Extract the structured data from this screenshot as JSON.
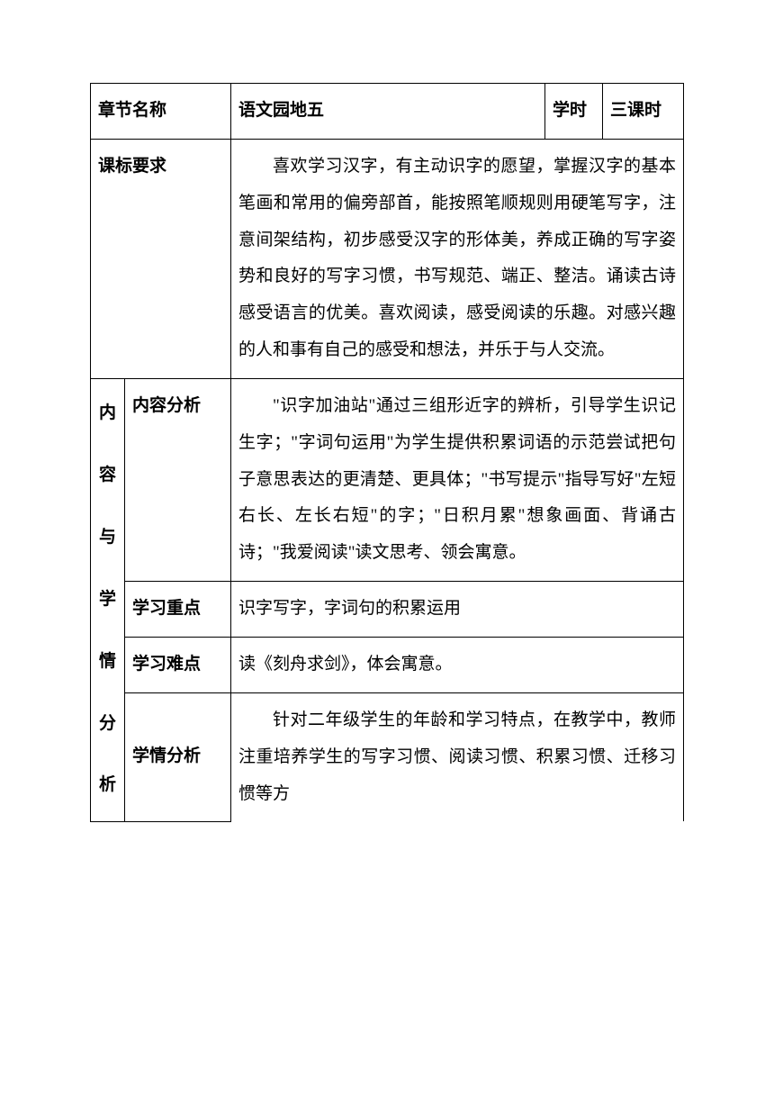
{
  "header": {
    "chapter_name_label": "章节名称",
    "chapter_name_value": "语文园地五",
    "hours_label": "学时",
    "hours_value": "三课时"
  },
  "rows": {
    "standard_label": "课标要求",
    "standard_content": "喜欢学习汉字，有主动识字的愿望，掌握汉字的基本笔画和常用的偏旁部首，能按照笔顺规则用硬笔写字，注意间架结构，初步感受汉字的形体美，养成正确的写字姿势和良好的写字习惯，书写规范、端正、整洁。诵读古诗感受语言的优美。喜欢阅读，感受阅读的乐趣。对感兴趣的人和事有自己的感受和想法，并乐于与人交流。",
    "section_label_chars": [
      "内",
      "容",
      "与",
      "学",
      "情",
      "分",
      "析"
    ],
    "content_analysis_label": "内容分析",
    "content_analysis_text": "\"识字加油站\"通过三组形近字的辨析，引导学生识记生字；\"字词句运用\"为学生提供积累词语的示范尝试把句子意思表达的更清楚、更具体；\"书写提示\"指导写好\"左短右长、左长右短\"的字；\"日积月累\"想象画面、背诵古诗；\"我爱阅读\"读文思考、领会寓意。",
    "focus_label": "学习重点",
    "focus_text": "识字写字，字词句的积累运用",
    "difficulty_label": "学习难点",
    "difficulty_text": "读《刻舟求剑》，体会寓意。",
    "situation_label": "学情分析",
    "situation_text": "针对二年级学生的年龄和学习特点，在教学中，教师注重培养学生的写字习惯、阅读习惯、积累习惯、迁移习惯等方"
  }
}
